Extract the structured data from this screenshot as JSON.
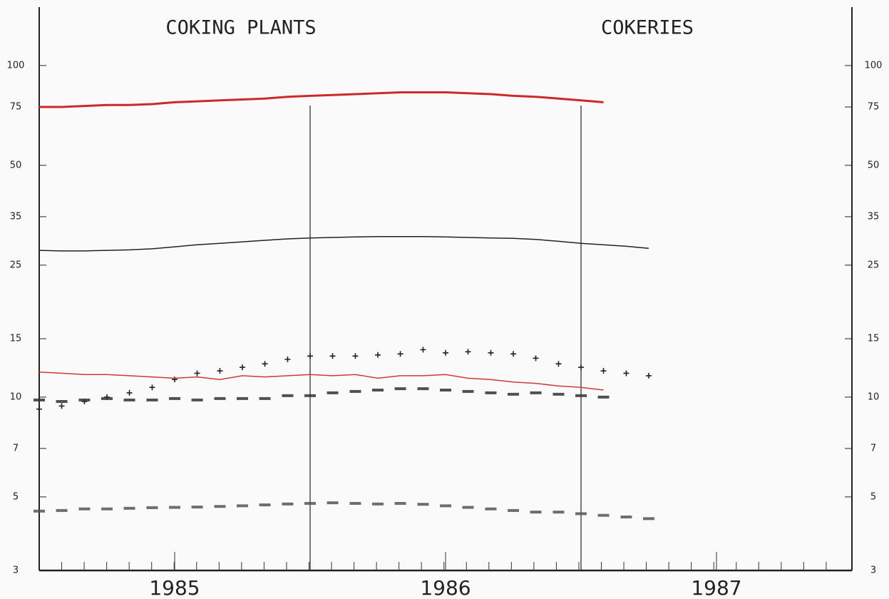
{
  "chart_data": {
    "type": "line",
    "annotations": [
      "COKING PLANTS",
      "COKERIES"
    ],
    "x": [
      1984.5,
      1984.583,
      1984.667,
      1984.75,
      1984.833,
      1984.917,
      1985,
      1985.083,
      1985.167,
      1985.25,
      1985.333,
      1985.417,
      1985.5,
      1985.583,
      1985.667,
      1985.75,
      1985.833,
      1985.917,
      1986,
      1986.083,
      1986.167,
      1986.25,
      1986.333,
      1986.417,
      1986.5,
      1986.583,
      1986.667,
      1986.75
    ],
    "series": [
      {
        "color": "#cc2a2a",
        "style": "line",
        "width": 3,
        "values": [
          75,
          75,
          75.5,
          76,
          76,
          76.5,
          77.5,
          78,
          78.5,
          79,
          79.5,
          80.5,
          81,
          81.5,
          82,
          82.5,
          83,
          83,
          83,
          82.5,
          82,
          81,
          80.5,
          79.5,
          78.5,
          77.5,
          null,
          null
        ]
      },
      {
        "color": "#222222",
        "style": "line",
        "width": 1.5,
        "values": [
          27.7,
          27.6,
          27.6,
          27.7,
          27.8,
          28,
          28.4,
          28.8,
          29.1,
          29.4,
          29.7,
          30,
          30.2,
          30.3,
          30.4,
          30.5,
          30.5,
          30.5,
          30.4,
          30.3,
          30.2,
          30.1,
          29.9,
          29.5,
          29.1,
          28.8,
          28.5,
          28.1
        ]
      },
      {
        "color": "#222222",
        "style": "plus",
        "values": [
          9.2,
          9.4,
          9.7,
          10,
          10.3,
          10.7,
          11.3,
          11.8,
          12,
          12.3,
          12.6,
          13,
          13.3,
          13.3,
          13.3,
          13.4,
          13.5,
          13.9,
          13.6,
          13.7,
          13.6,
          13.5,
          13.1,
          12.6,
          12.3,
          12,
          11.8,
          11.6
        ]
      },
      {
        "color": "#cc3a3a",
        "style": "line",
        "width": 1.5,
        "values": [
          11.9,
          11.8,
          11.7,
          11.7,
          11.6,
          11.5,
          11.4,
          11.5,
          11.3,
          11.6,
          11.5,
          11.6,
          11.7,
          11.6,
          11.7,
          11.4,
          11.6,
          11.6,
          11.7,
          11.4,
          11.3,
          11.1,
          11,
          10.8,
          10.7,
          10.5,
          null,
          null
        ]
      },
      {
        "color": "#333333",
        "style": "dots",
        "values": [
          9.8,
          9.7,
          9.8,
          9.9,
          9.8,
          9.8,
          9.9,
          9.8,
          9.9,
          9.9,
          9.9,
          10.1,
          10.1,
          10.3,
          10.4,
          10.5,
          10.6,
          10.6,
          10.5,
          10.4,
          10.3,
          10.2,
          10.3,
          10.2,
          10.1,
          10,
          null,
          null
        ]
      },
      {
        "color": "#555555",
        "style": "dots",
        "values": [
          4.53,
          4.55,
          4.6,
          4.6,
          4.62,
          4.64,
          4.65,
          4.66,
          4.68,
          4.7,
          4.73,
          4.76,
          4.78,
          4.8,
          4.78,
          4.76,
          4.78,
          4.75,
          4.7,
          4.65,
          4.6,
          4.55,
          4.5,
          4.5,
          4.45,
          4.4,
          4.35,
          4.3
        ]
      }
    ],
    "xlim": [
      1984.5,
      1987.5
    ],
    "xticks": [
      1985,
      1986,
      1987
    ],
    "vlines": [
      1985.5,
      1986.5
    ],
    "ylim": [
      3,
      150
    ],
    "yticks": [
      3,
      5,
      7,
      10,
      15,
      25,
      35,
      50,
      75,
      100
    ],
    "log_y": true
  }
}
